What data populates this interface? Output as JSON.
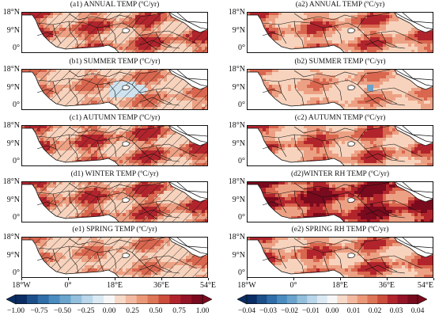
{
  "left_panels": [
    {
      "title": "(a1) ANNUAL TEMP (ºC/yr)",
      "theme": "warm-hatched"
    },
    {
      "title": "(b1) SUMMER TEMP (ºC/yr)",
      "theme": "mixed-hatched"
    },
    {
      "title": "(c1) AUTUMN TEMP (ºC/yr)",
      "theme": "warm-hatched"
    },
    {
      "title": "(d1) WINTER TEMP (ºC/yr)",
      "theme": "warm-hatched"
    },
    {
      "title": "(e1) SPRING TEMP (ºC/yr)",
      "theme": "light-hatched"
    }
  ],
  "right_panels": [
    {
      "title": "(a2) ANNUAL TEMP (ºC/yr)",
      "theme": "warm"
    },
    {
      "title": "(b2) SUMMER TEMP (ºC/yr)",
      "theme": "warm-light"
    },
    {
      "title": "(c2) AUTUMN TEMP (ºC/yr)",
      "theme": "warm"
    },
    {
      "title": "(d2)WINTER RH  TEMP (ºC/yr)",
      "theme": "dark-warm"
    },
    {
      "title": "(e2) SPRING RH  TEMP (ºC/yr)",
      "theme": "warm"
    }
  ],
  "lat_labels": [
    "18°N",
    "9°N",
    "0°"
  ],
  "lon_labels": [
    "18°W",
    "0°",
    "18°E",
    "36°E",
    "54°E"
  ],
  "colorbar_left": {
    "ticks": [
      "−1.00",
      "−0.75",
      "−0.50",
      "−0.25",
      "0.00",
      "0.25",
      "0.50",
      "0.75",
      "1.00"
    ],
    "min": -1.0,
    "max": 1.0
  },
  "colorbar_right": {
    "ticks": [
      "−0.04",
      "−0.03",
      "−0.02",
      "−0.01",
      "0.00",
      "0.01",
      "0.02",
      "0.03",
      "0.04"
    ],
    "min": -0.04,
    "max": 0.04
  },
  "colors": {
    "ocean": "#ffffff",
    "warm_1": "#f7d3bd",
    "warm_2": "#eda184",
    "warm_3": "#d9664e",
    "warm_4": "#b2242c",
    "warm_5": "#7a0a1d",
    "cool_1": "#cfe3ef",
    "cool_2": "#6aa3cc",
    "cool_3": "#1c4f8a",
    "cool_4": "#0a2d63"
  }
}
